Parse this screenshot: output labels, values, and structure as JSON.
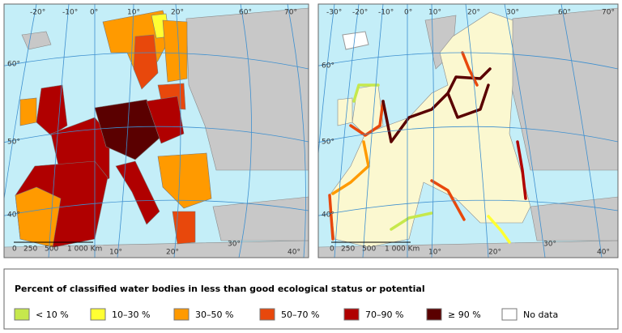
{
  "maps": [
    {
      "graticule_labels": [
        "-20°",
        "-10°",
        "0°",
        "10°",
        "20°",
        "60°",
        "70°",
        "60°",
        "50°",
        "40°",
        "10°",
        "20°",
        "30°",
        "40°"
      ],
      "scale": [
        "0",
        "250",
        "500",
        "1 000 Km"
      ]
    },
    {
      "graticule_labels": [
        "-30°",
        "-20°",
        "-10°",
        "0°",
        "10°",
        "20°",
        "30°",
        "60°",
        "70°",
        "60°",
        "50°",
        "40°",
        "10°",
        "20°",
        "30°",
        "40°"
      ],
      "scale": [
        "0",
        "250",
        "500",
        "1 000 Km"
      ]
    }
  ],
  "legend": {
    "title": "Percent of classified water bodies in less than good ecological status or potential",
    "items": [
      {
        "label": "< 10 %",
        "color": "#c6e84c"
      },
      {
        "label": "10–30 %",
        "color": "#ffff33"
      },
      {
        "label": "30–50 %",
        "color": "#ff9a00"
      },
      {
        "label": "50–70 %",
        "color": "#e8480c"
      },
      {
        "label": "70–90 %",
        "color": "#b00000"
      },
      {
        "label": "≥ 90 %",
        "color": "#5a0000"
      },
      {
        "label": "No data",
        "color": "#ffffff"
      }
    ]
  }
}
